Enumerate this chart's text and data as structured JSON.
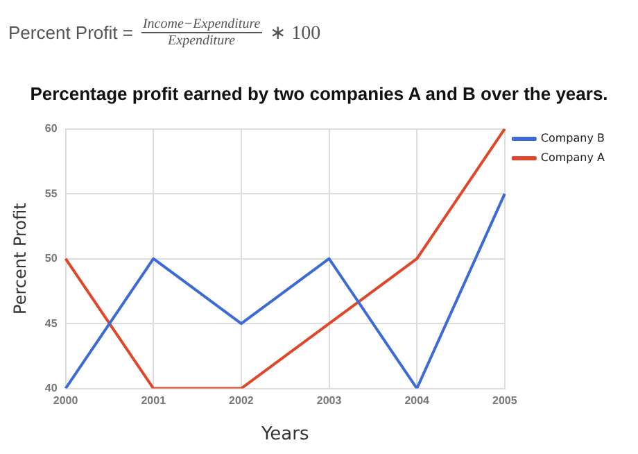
{
  "chart_data": {
    "type": "line",
    "annotations": [
      "Percent Profit =",
      "Income−Expenditure",
      "Expenditure",
      "∗ 100"
    ],
    "title": "Percentage profit earned by two companies A and B over the years.",
    "xlabel": "Years",
    "ylabel": "Percent Profit",
    "categories": [
      "2000",
      "2001",
      "2002",
      "2003",
      "2004",
      "2005"
    ],
    "series": [
      {
        "name": "Company B",
        "color": "#3c6bd6",
        "values": [
          40,
          50,
          45,
          50,
          40,
          55
        ]
      },
      {
        "name": "Company A",
        "color": "#e0472a",
        "values": [
          50,
          40,
          40,
          45,
          50,
          60
        ]
      }
    ],
    "ylim": [
      40,
      60
    ],
    "yticks": [
      40,
      45,
      50,
      55,
      60
    ],
    "grid": true,
    "legend": "top right",
    "marker": "none",
    "line_style": "solid"
  }
}
